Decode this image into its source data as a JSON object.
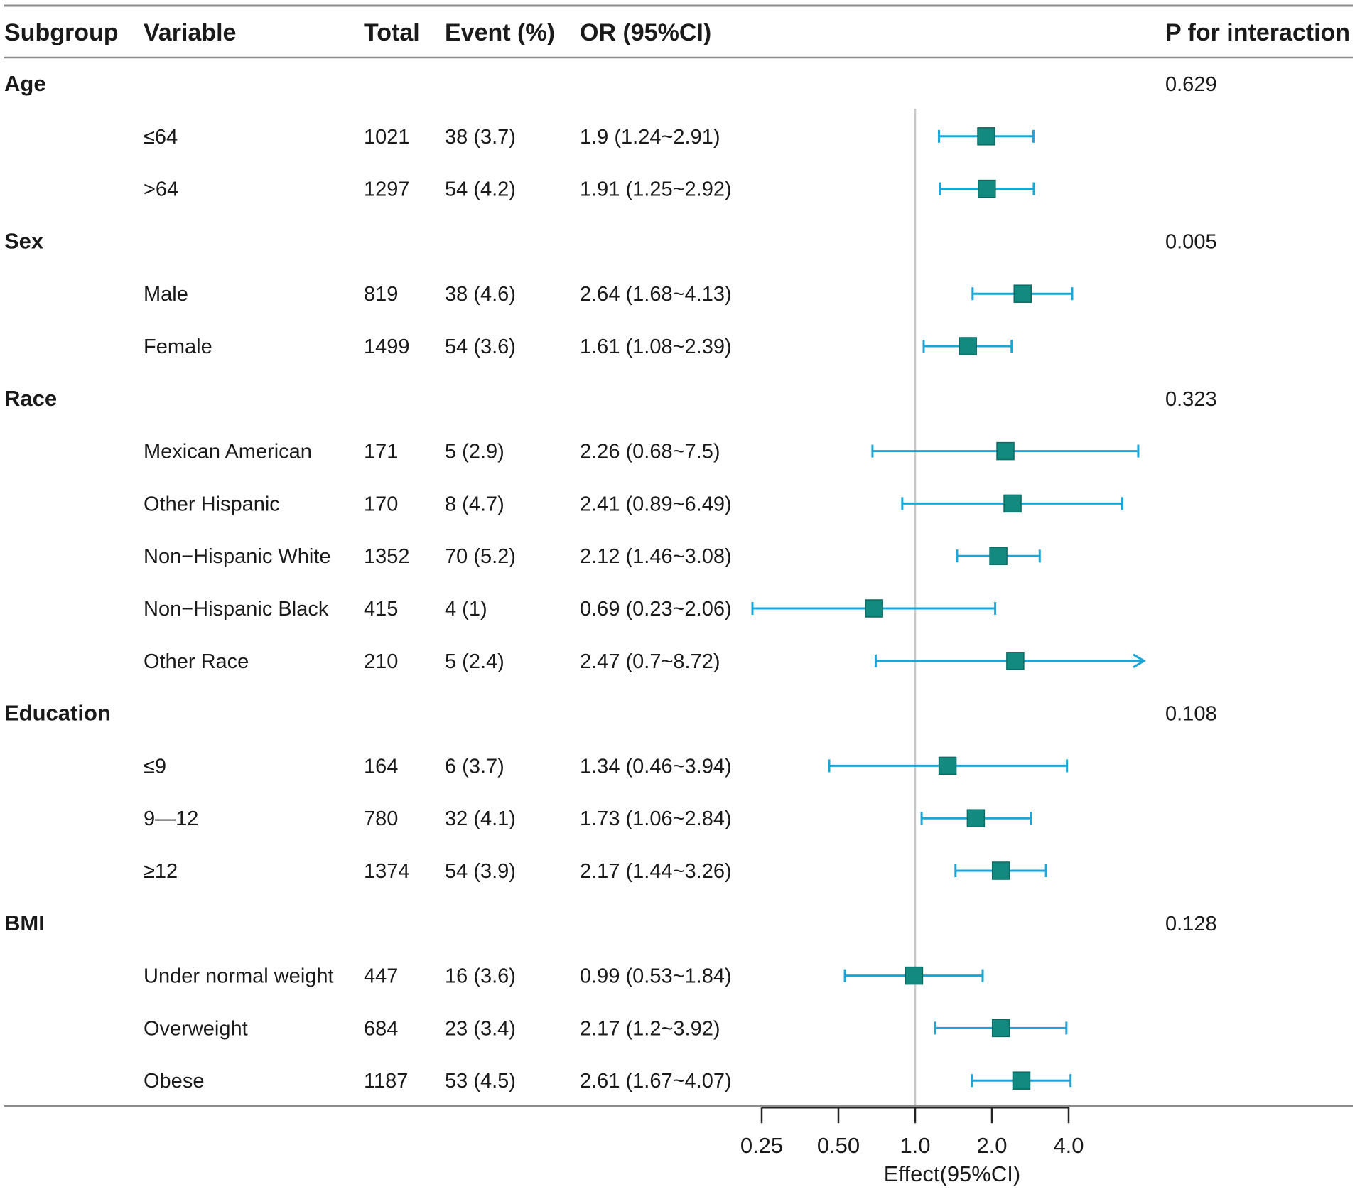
{
  "chart_data": {
    "type": "forest",
    "title": "",
    "xlabel": "Effect(95%CI)",
    "x_scale": "log2",
    "xlim": [
      0.25,
      4.0
    ],
    "reference_line": 1.0,
    "x_ticks": [
      0.25,
      0.5,
      1.0,
      2.0,
      4.0
    ],
    "x_tick_labels": [
      "0.25",
      "0.50",
      "1.0",
      "2.0",
      "4.0"
    ],
    "columns": [
      "Subgroup",
      "Variable",
      "Total",
      "Event (%)",
      "OR (95%CI)",
      "P for interaction"
    ],
    "groups": [
      {
        "name": "Age",
        "p_interaction": "0.629",
        "rows": [
          {
            "variable": "≤64",
            "total": "1021",
            "event": "38 (3.7)",
            "or_text": "1.9 (1.24~2.91)",
            "or": 1.9,
            "lower": 1.24,
            "upper": 2.91
          },
          {
            "variable": ">64",
            "total": "1297",
            "event": "54 (4.2)",
            "or_text": "1.91 (1.25~2.92)",
            "or": 1.91,
            "lower": 1.25,
            "upper": 2.92
          }
        ]
      },
      {
        "name": "Sex",
        "p_interaction": "0.005",
        "rows": [
          {
            "variable": "Male",
            "total": "819",
            "event": "38 (4.6)",
            "or_text": "2.64 (1.68~4.13)",
            "or": 2.64,
            "lower": 1.68,
            "upper": 4.13
          },
          {
            "variable": "Female",
            "total": "1499",
            "event": "54 (3.6)",
            "or_text": "1.61 (1.08~2.39)",
            "or": 1.61,
            "lower": 1.08,
            "upper": 2.39
          }
        ]
      },
      {
        "name": "Race",
        "p_interaction": "0.323",
        "rows": [
          {
            "variable": "Mexican American",
            "total": "171",
            "event": "5 (2.9)",
            "or_text": "2.26 (0.68~7.5)",
            "or": 2.26,
            "lower": 0.68,
            "upper": 7.5
          },
          {
            "variable": "Other Hispanic",
            "total": "170",
            "event": "8 (4.7)",
            "or_text": "2.41 (0.89~6.49)",
            "or": 2.41,
            "lower": 0.89,
            "upper": 6.49
          },
          {
            "variable": "Non−Hispanic White",
            "total": "1352",
            "event": "70 (5.2)",
            "or_text": "2.12 (1.46~3.08)",
            "or": 2.12,
            "lower": 1.46,
            "upper": 3.08
          },
          {
            "variable": "Non−Hispanic Black",
            "total": "415",
            "event": "4 (1)",
            "or_text": "0.69 (0.23~2.06)",
            "or": 0.69,
            "lower": 0.23,
            "upper": 2.06
          },
          {
            "variable": "Other Race",
            "total": "210",
            "event": "5 (2.4)",
            "or_text": "2.47 (0.7~8.72)",
            "or": 2.47,
            "lower": 0.7,
            "upper": 8.72
          }
        ]
      },
      {
        "name": "Education",
        "p_interaction": "0.108",
        "rows": [
          {
            "variable": "≤9",
            "total": "164",
            "event": "6 (3.7)",
            "or_text": "1.34 (0.46~3.94)",
            "or": 1.34,
            "lower": 0.46,
            "upper": 3.94
          },
          {
            "variable": "9—12",
            "total": "780",
            "event": "32 (4.1)",
            "or_text": "1.73 (1.06~2.84)",
            "or": 1.73,
            "lower": 1.06,
            "upper": 2.84
          },
          {
            "variable": "≥12",
            "total": "1374",
            "event": "54 (3.9)",
            "or_text": "2.17 (1.44~3.26)",
            "or": 2.17,
            "lower": 1.44,
            "upper": 3.26
          }
        ]
      },
      {
        "name": "BMI",
        "p_interaction": "0.128",
        "rows": [
          {
            "variable": "Under normal weight",
            "total": "447",
            "event": "16 (3.6)",
            "or_text": "0.99 (0.53~1.84)",
            "or": 0.99,
            "lower": 0.53,
            "upper": 1.84
          },
          {
            "variable": "Overweight",
            "total": "684",
            "event": "23 (3.4)",
            "or_text": "2.17 (1.2~3.92)",
            "or": 2.17,
            "lower": 1.2,
            "upper": 3.92
          },
          {
            "variable": "Obese",
            "total": "1187",
            "event": "53 (4.5)",
            "or_text": "2.61 (1.67~4.07)",
            "or": 2.61,
            "lower": 1.67,
            "upper": 4.07
          }
        ]
      }
    ],
    "colors": {
      "ci_line": "#1aa6d8",
      "point": "#138a80",
      "point_border": "#0c6a62",
      "reference_line": "#c8c8c8",
      "rule": "#8c8c8c",
      "axis": "#222222"
    }
  }
}
